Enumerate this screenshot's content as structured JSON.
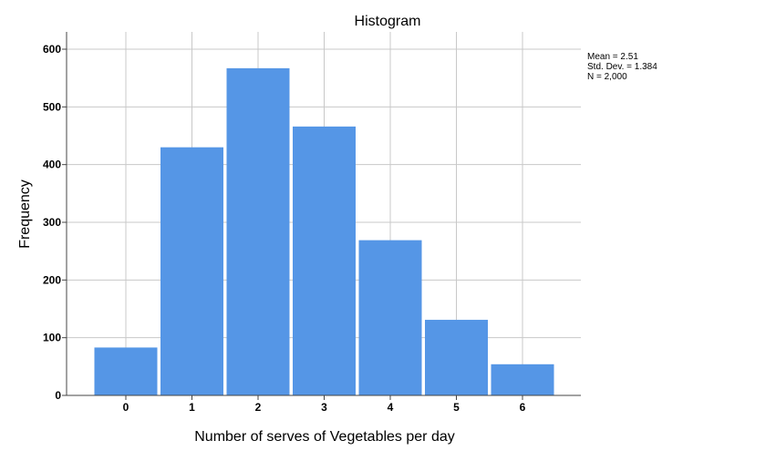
{
  "chart_data": {
    "type": "bar",
    "title": "Histogram",
    "xlabel": "Number of serves of Vegetables per day",
    "ylabel": "Frequency",
    "categories": [
      "0",
      "1",
      "2",
      "3",
      "4",
      "5",
      "6"
    ],
    "values": [
      83,
      430,
      567,
      466,
      269,
      131,
      54
    ],
    "ylim": [
      0,
      630
    ],
    "yticks": [
      0,
      100,
      200,
      300,
      400,
      500,
      600
    ],
    "grid": true,
    "bar_color": "#5596E6",
    "stats": {
      "mean": "Mean = 2.51",
      "std": "Std. Dev. = 1.384",
      "n": "N = 2,000"
    }
  }
}
